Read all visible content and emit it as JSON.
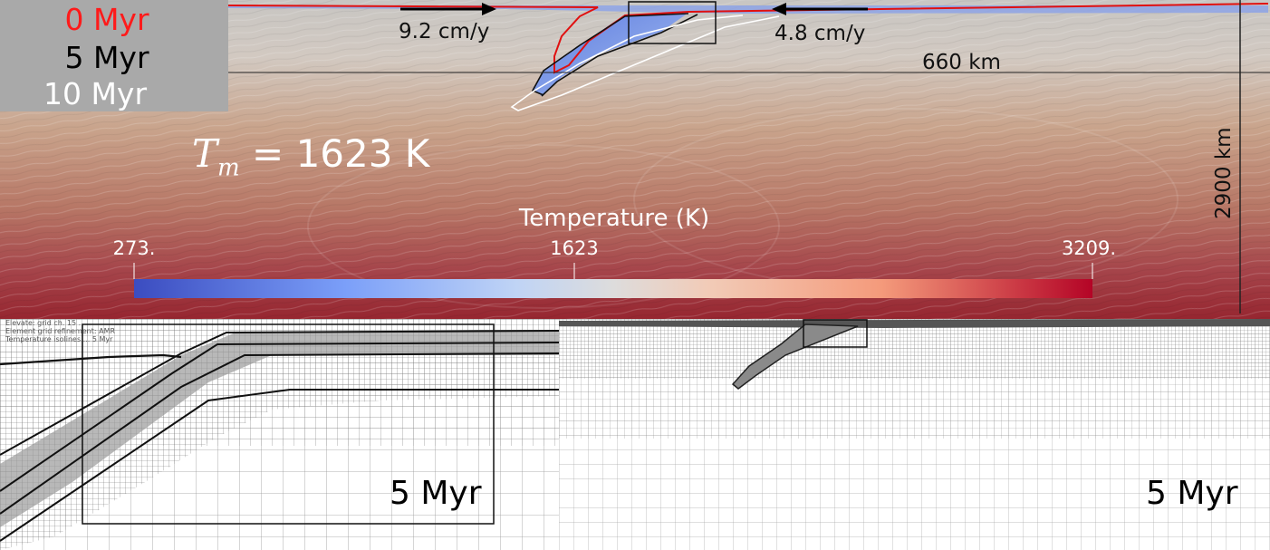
{
  "legend": {
    "items": [
      {
        "label": "0 Myr",
        "color": "#ff1a1a"
      },
      {
        "label": "5 Myr",
        "color": "#000000"
      },
      {
        "label": "10 Myr",
        "color": "#ffffff"
      }
    ]
  },
  "velocities": {
    "left": "9.2 cm/y",
    "right": "4.8 cm/y"
  },
  "depths": {
    "transition": "660 km",
    "mantle": "2900 km"
  },
  "mantle_temperature": {
    "symbol": "T",
    "subscript": "m",
    "value": "= 1623 K"
  },
  "colorbar": {
    "title": "Temperature (K)",
    "ticks": [
      "273.",
      "1623",
      "3209."
    ],
    "colors": [
      "#3b4cc0",
      "#dddcdc",
      "#b40426"
    ]
  },
  "zoom_panel": {
    "snapshot": "5 Myr",
    "meta_lines": [
      "Elevate: grid ch. 15 ... ",
      "Element grid refinement: AMR",
      "Temperature isolines ... 5 Myr"
    ]
  },
  "overview_panel": {
    "snapshot": "5 Myr"
  }
}
